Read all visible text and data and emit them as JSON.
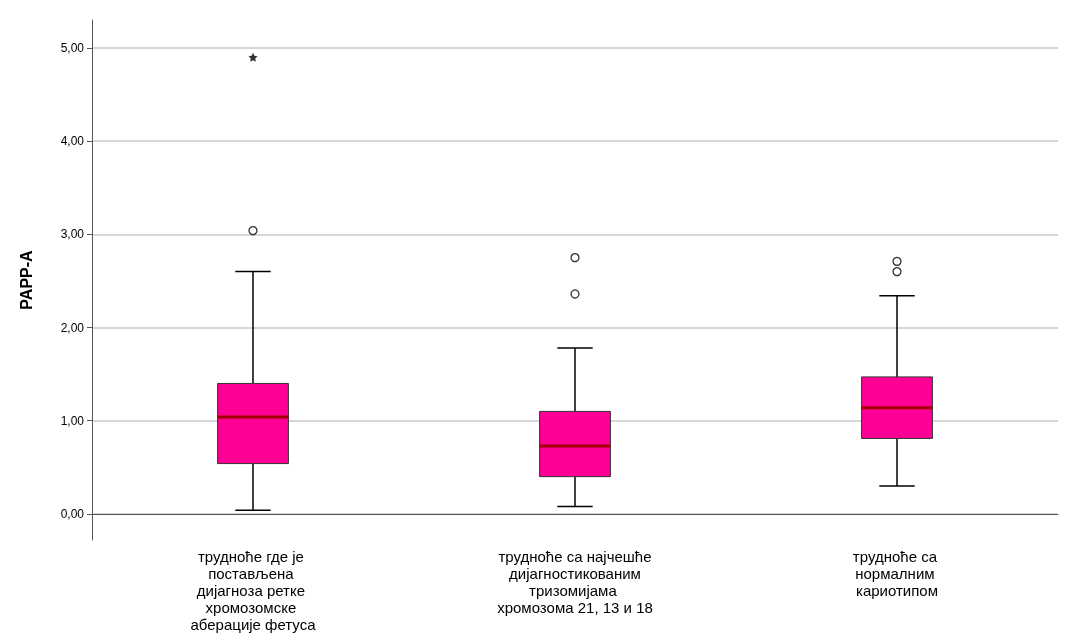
{
  "chart_data": {
    "type": "box",
    "ylabel": "PAPP-A",
    "categories": [
      "трудноће где је постављена дијагноза ретке хромозомске аберације фетуса",
      "трудноће са најчешће дијагностикованим тризомијама хромозома 21, 13 и 18",
      "трудноће са нормалним кариотипом"
    ],
    "ylim": [
      -0.28,
      5.3
    ],
    "yticks": [
      {
        "value": 0,
        "label": "0,00"
      },
      {
        "value": 1,
        "label": "1,00"
      },
      {
        "value": 2,
        "label": "2,00"
      },
      {
        "value": 3,
        "label": "3,00"
      },
      {
        "value": 4,
        "label": "4,00"
      },
      {
        "value": 5,
        "label": "5,00"
      }
    ],
    "grid": "y",
    "series": [
      {
        "color": "#ff0096",
        "boxes": [
          {
            "low": 0.04,
            "q1": 0.54,
            "median": 1.04,
            "q3": 1.4,
            "high": 2.6,
            "outliers": [
              3.04
            ]
          },
          {
            "low": 0.08,
            "q1": 0.4,
            "median": 0.73,
            "q3": 1.1,
            "high": 1.78,
            "outliers": [
              2.36,
              2.75
            ]
          },
          {
            "low": 0.3,
            "q1": 0.81,
            "median": 1.14,
            "q3": 1.47,
            "high": 2.34,
            "outliers": [
              2.6,
              2.71
            ]
          }
        ]
      },
      {
        "type": "scatter",
        "marker": "star",
        "color": "#000000",
        "x": [
          "трудноће где је постављена дијагноза ретке хромозомске аберације фетуса"
        ],
        "values": [
          4.9
        ]
      }
    ]
  }
}
